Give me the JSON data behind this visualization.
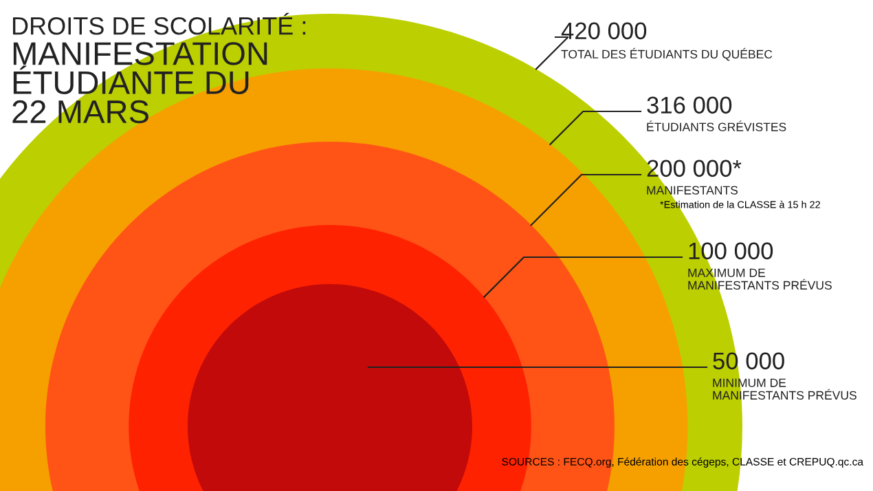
{
  "chart_data": {
    "type": "other",
    "title": "DROITS DE SCOLARITÉ :",
    "subtitle": "MANIFESTATION\nÉTUDIANTE DU\n22 MARS",
    "categories": [
      "TOTAL DES ÉTUDIANTS DU QUÉBEC",
      "ÉTUDIANTS GRÉVISTES",
      "MANIFESTANTS",
      "MAXIMUM DE\nMANIFESTANTS PRÉVUS",
      "MINIMUM DE\nMANIFESTANTS PRÉVUS"
    ],
    "values": [
      420000,
      316000,
      200000,
      100000,
      50000
    ],
    "value_labels": [
      "420 000",
      "316 000",
      "200 000*",
      "100 000",
      "50 000"
    ],
    "colors": [
      "#bccf00",
      "#f6a000",
      "#ff5416",
      "#ff2200",
      "#c20a0a"
    ],
    "annotations": [
      "*Estimation de la CLASSE à 15 h 22",
      "SOURCES : FECQ.org, Fédération des cégeps, CLASSE et CREPUQ.qc.ca"
    ]
  }
}
